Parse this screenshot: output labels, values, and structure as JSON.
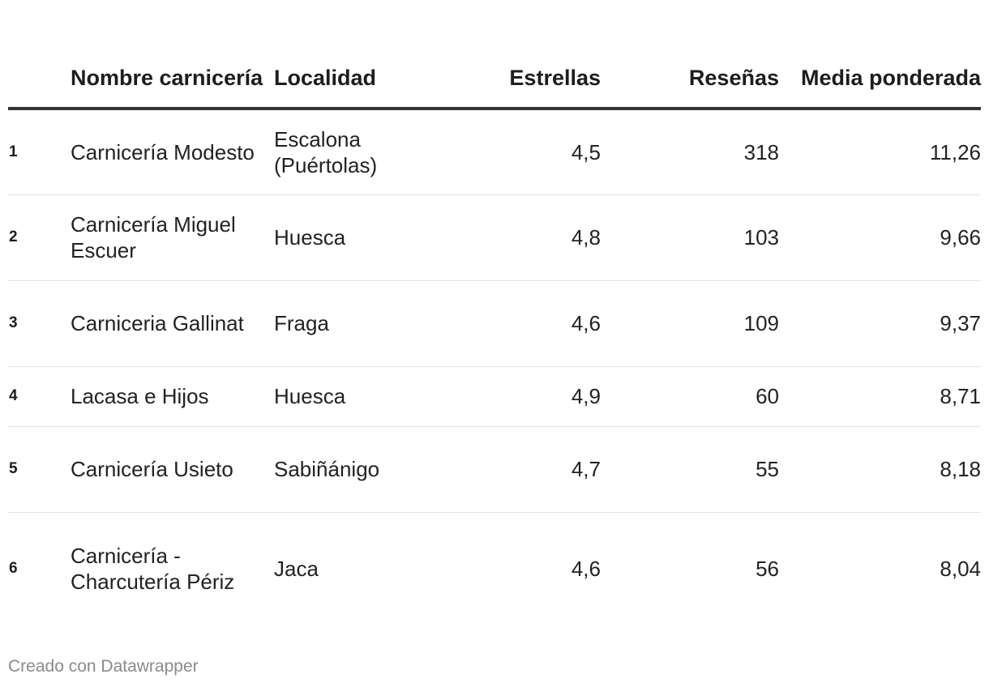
{
  "chart_data": {
    "type": "table",
    "columns": [
      "",
      "Nombre carnicería",
      "Localidad",
      "Estrellas",
      "Reseñas",
      "Media ponderada"
    ],
    "rows": [
      {
        "rank": "1",
        "name": "Carnicería Modesto",
        "location": "Escalona (Puértolas)",
        "stars": "4,5",
        "reviews": "318",
        "weighted_avg": "11,26"
      },
      {
        "rank": "2",
        "name": "Carnicería Miguel Escuer",
        "location": "Huesca",
        "stars": "4,8",
        "reviews": "103",
        "weighted_avg": "9,66"
      },
      {
        "rank": "3",
        "name": "Carniceria Gallinat",
        "location": "Fraga",
        "stars": "4,6",
        "reviews": "109",
        "weighted_avg": "9,37"
      },
      {
        "rank": "4",
        "name": "Lacasa e Hijos",
        "location": "Huesca",
        "stars": "4,9",
        "reviews": "60",
        "weighted_avg": "8,71"
      },
      {
        "rank": "5",
        "name": "Carnicería Usieto",
        "location": "Sabiñánigo",
        "stars": "4,7",
        "reviews": "55",
        "weighted_avg": "8,18"
      },
      {
        "rank": "6",
        "name": "Carnicería - Charcutería Périz",
        "location": "Jaca",
        "stars": "4,6",
        "reviews": "56",
        "weighted_avg": "8,04"
      }
    ]
  },
  "footer": {
    "credit": "Creado con Datawrapper"
  }
}
